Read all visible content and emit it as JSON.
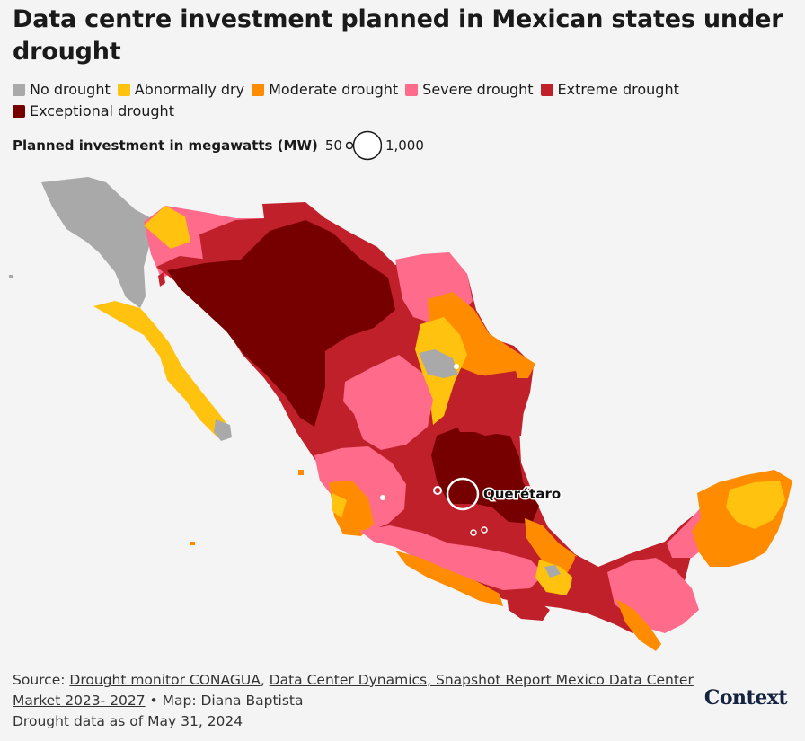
{
  "title": "Data centre investment planned in Mexican states under drought",
  "legend": [
    {
      "label": "No drought",
      "color": "#a9a9a9"
    },
    {
      "label": "Abnormally dry",
      "color": "#ffc20e"
    },
    {
      "label": "Moderate drought",
      "color": "#ff8c00"
    },
    {
      "label": "Severe drought",
      "color": "#ff6b8b"
    },
    {
      "label": "Extreme drought",
      "color": "#c0202a"
    },
    {
      "label": "Exceptional drought",
      "color": "#760000"
    }
  ],
  "size_legend": {
    "title": "Planned investment in megawatts (MW)",
    "min_label": "50",
    "max_label": "1,000"
  },
  "map": {
    "label_queretaro": "Querétaro",
    "investments": [
      {
        "place": "Querétaro",
        "mw": 1000
      },
      {
        "place": "Guanajuato",
        "mw": 50
      },
      {
        "place": "Nuevo León",
        "mw": 50
      },
      {
        "place": "Jalisco",
        "mw": 50
      },
      {
        "place": "Estado de México",
        "mw": 50
      },
      {
        "place": "Mexico City",
        "mw": 50
      }
    ]
  },
  "footer": {
    "source_prefix": "Source: ",
    "link1": "Drought monitor CONAGUA",
    "sep1": ", ",
    "link2": "Data Center Dynamics, Snapshot Report Mexico Data Center Market 2023- 2027",
    "credit": " • Map: Diana Baptista",
    "date": "Drought data as of May 31, 2024"
  },
  "logo": "Context"
}
